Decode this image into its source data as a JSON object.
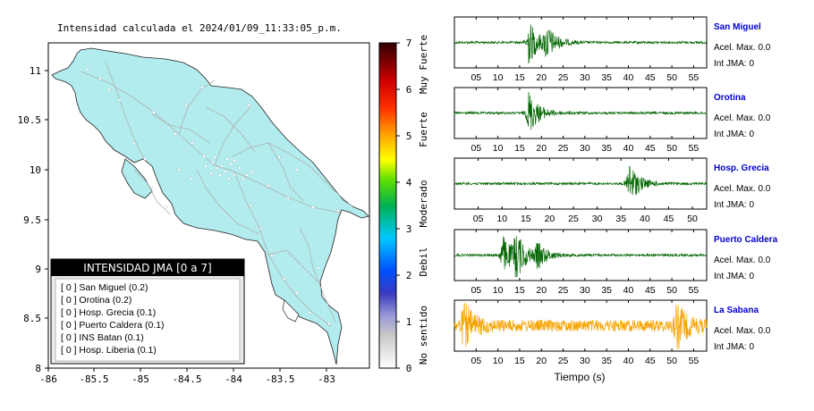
{
  "map": {
    "title": "Intensidad calculada el 2024/01/09_11:33:05_p.m.",
    "lon_ticks": [
      "-86",
      "-85.5",
      "-85",
      "-84.5",
      "-84",
      "-83.5",
      "-83"
    ],
    "lat_ticks": [
      "8",
      "8.5",
      "9",
      "9.5",
      "10",
      "10.5",
      "11"
    ],
    "land_color": "#b2ecee",
    "legend": {
      "title": "INTENSIDAD JMA [0 a 7]",
      "items": [
        "[ 0 ]  San Miguel (0.2)",
        "[ 0 ]  Orotina (0.2)",
        "[ 0 ]  Hosp. Grecia (0.1)",
        "[ 0 ]  Puerto Caldera (0.1)",
        "[ 0 ]  INS Batan (0.1)",
        "[ 0 ]  Hosp. Liberia (0.1)"
      ]
    }
  },
  "colorbar": {
    "ticks": [
      "0",
      "1",
      "2",
      "3",
      "4",
      "5",
      "6",
      "7"
    ],
    "labels": [
      "No sentido",
      "Debil",
      "Moderado",
      "Fuerte",
      "Muy Fuerte"
    ]
  },
  "waveforms": {
    "x_label": "Tiempo (s)",
    "panels": [
      {
        "station": "San Miguel",
        "line1": "Acel. Max. 0.0",
        "line2": "Int JMA: 0",
        "color": "#006400",
        "ticks": [
          "05",
          "10",
          "15",
          "20",
          "25",
          "30",
          "35",
          "40",
          "45",
          "50",
          "55"
        ]
      },
      {
        "station": "Orotina",
        "line1": "Acel. Max. 0.0",
        "line2": "Int JMA: 0",
        "color": "#006400",
        "ticks": [
          "05",
          "10",
          "15",
          "20",
          "25",
          "30",
          "35",
          "40",
          "45",
          "50",
          "55"
        ]
      },
      {
        "station": "Hosp. Grecia",
        "line1": "Acel. Max. 0.0",
        "line2": "Int JMA: 0",
        "color": "#006400",
        "ticks": [
          "05",
          "10",
          "15",
          "20",
          "25",
          "30",
          "35",
          "40",
          "45",
          "50"
        ]
      },
      {
        "station": "Puerto Caldera",
        "line1": "Acel. Max. 0.0",
        "line2": "Int JMA: 0",
        "color": "#006400",
        "ticks": [
          "05",
          "10",
          "15",
          "20",
          "25",
          "30",
          "35",
          "40",
          "45",
          "50",
          "55"
        ]
      },
      {
        "station": "La Sabana",
        "line1": "Acel. Max. 0.0",
        "line2": "Int JMA: 0",
        "color": "#f5a300",
        "ticks": [
          "05",
          "10",
          "15",
          "20",
          "25",
          "30",
          "35",
          "40",
          "45",
          "50",
          "55"
        ]
      }
    ]
  },
  "chart_data": [
    {
      "type": "scatter",
      "title": "Intensidad calculada el 2024/01/09_11:33:05_p.m.",
      "xlim": [
        -86,
        -82.6
      ],
      "ylim": [
        8,
        11.3
      ],
      "grid": false,
      "legend_placement": "bottom-left",
      "colorbar_range": [
        0,
        7
      ]
    },
    {
      "type": "line",
      "xlabel": "Tiempo (s)",
      "series": [
        {
          "name": "San Miguel",
          "events": [
            {
              "t": 17,
              "amp": 1.0
            },
            {
              "t": 21,
              "amp": 0.7
            }
          ]
        },
        {
          "name": "Orotina",
          "events": [
            {
              "t": 17,
              "amp": 1.0
            }
          ]
        },
        {
          "name": "Hosp. Grecia",
          "events": [
            {
              "t": 40,
              "amp": 1.0
            }
          ]
        },
        {
          "name": "Puerto Caldera",
          "events": [
            {
              "t": 11,
              "amp": 0.9
            },
            {
              "t": 14,
              "amp": 1.0
            },
            {
              "t": 19,
              "amp": 0.5
            }
          ]
        },
        {
          "name": "La Sabana",
          "events": [
            {
              "t": 2,
              "amp": 1.0
            },
            {
              "t": 51,
              "amp": 1.0
            }
          ]
        }
      ]
    }
  ]
}
